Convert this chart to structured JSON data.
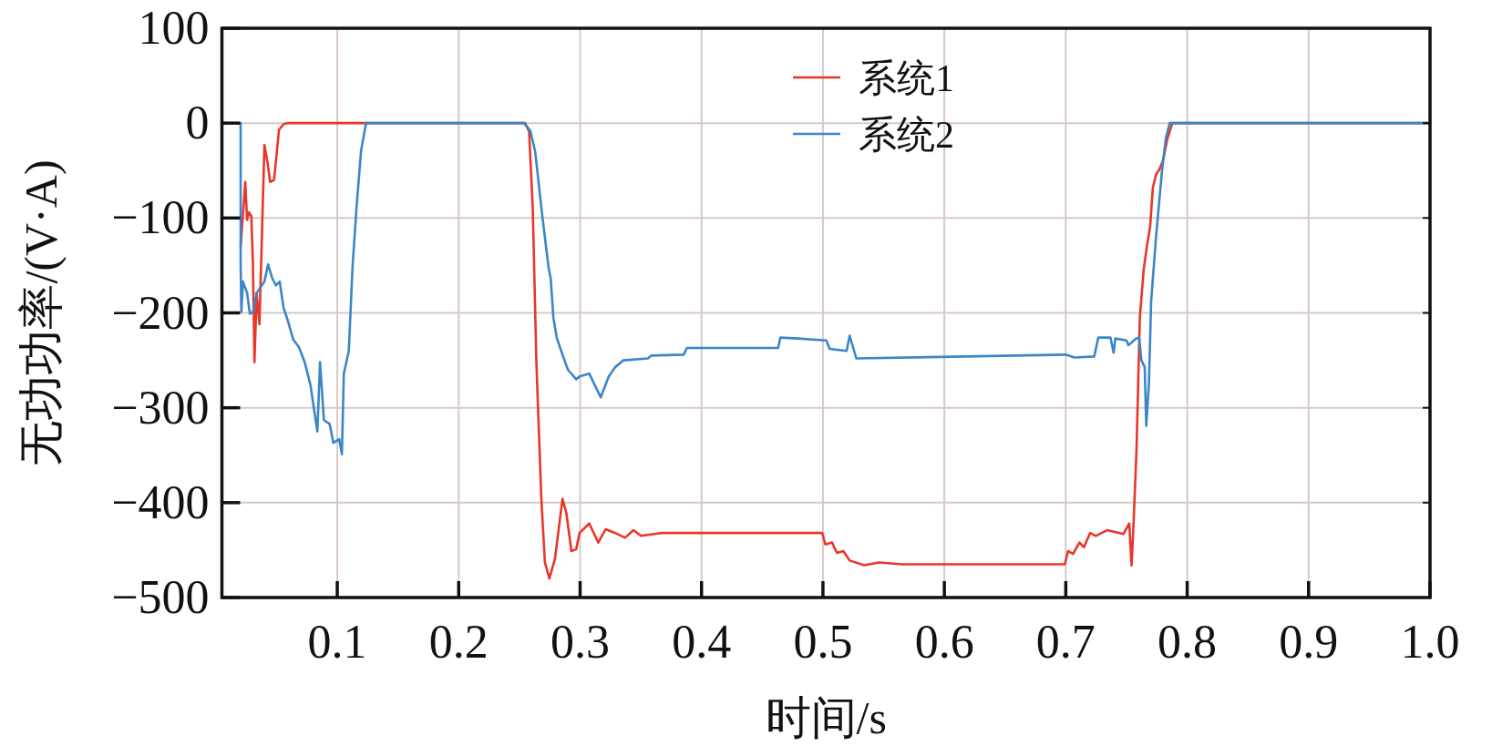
{
  "chart_data": {
    "type": "line",
    "xlabel": "时间/s",
    "ylabel": "无功功率/(V·A)",
    "xlim": [
      0.005,
      1.0
    ],
    "ylim": [
      -500,
      100
    ],
    "xticks": [
      0.1,
      0.2,
      0.3,
      0.4,
      0.5,
      0.6,
      0.7,
      0.8,
      0.9,
      {
        "value": 1.0,
        "label": "1.0"
      }
    ],
    "yticks": [
      -500,
      -400,
      -300,
      -200,
      -100,
      0,
      100
    ],
    "grid": true,
    "legend": "top",
    "marker": "none",
    "line_style": "solid",
    "series": [
      {
        "name": "系统1",
        "color": "#e8362a",
        "x": [
          0.0204,
          0.0242,
          0.0257,
          0.0273,
          0.0292,
          0.0305,
          0.0318,
          0.0336,
          0.0359,
          0.04,
          0.0425,
          0.0447,
          0.0479,
          0.05,
          0.052,
          0.0558,
          0.059,
          0.2548,
          0.258,
          0.261,
          0.264,
          0.268,
          0.271,
          0.2747,
          0.2793,
          0.2855,
          0.2887,
          0.2928,
          0.2968,
          0.2995,
          0.3075,
          0.315,
          0.321,
          0.329,
          0.337,
          0.344,
          0.35,
          0.3665,
          0.404,
          0.4994,
          0.502,
          0.5075,
          0.5115,
          0.5168,
          0.522,
          0.534,
          0.5463,
          0.565,
          0.6992,
          0.7019,
          0.706,
          0.7113,
          0.715,
          0.72,
          0.7247,
          0.734,
          0.7475,
          0.7523,
          0.7542,
          0.7556,
          0.7583,
          0.761,
          0.7642,
          0.7668,
          0.7695,
          0.7717,
          0.7744,
          0.777,
          0.78,
          0.7838,
          0.7878,
          1.0
        ],
        "values": [
          -130,
          -62,
          -102,
          -94,
          -98,
          -147,
          -252,
          -179,
          -212,
          -23,
          -41,
          -62,
          -60,
          -33,
          -7,
          -1,
          0,
          0,
          -9,
          -90,
          -252,
          -394,
          -463,
          -480,
          -459,
          -396,
          -411,
          -451,
          -449,
          -432,
          -422,
          -442,
          -428,
          -432,
          -437,
          -429,
          -435,
          -432,
          -432,
          -432,
          -444,
          -442,
          -453,
          -451,
          -461,
          -466,
          -463,
          -465,
          -465,
          -451,
          -454,
          -442,
          -447,
          -432,
          -435,
          -429,
          -433,
          -422,
          -466,
          -429,
          -343,
          -205,
          -154,
          -130,
          -109,
          -68,
          -54,
          -49,
          -40,
          -16,
          0,
          0
        ]
      },
      {
        "name": "系统2",
        "color": "#3a86c8",
        "x": [
          0.0204,
          0.0204,
          0.021,
          0.0223,
          0.0257,
          0.028,
          0.0305,
          0.0336,
          0.04,
          0.043,
          0.0463,
          0.0494,
          0.0526,
          0.0558,
          0.059,
          0.0637,
          0.0684,
          0.0732,
          0.0779,
          0.0836,
          0.0858,
          0.089,
          0.0937,
          0.0968,
          0.1016,
          0.1038,
          0.1054,
          0.1095,
          0.1126,
          0.1158,
          0.1196,
          0.1237,
          0.2538,
          0.259,
          0.263,
          0.2686,
          0.274,
          0.2758,
          0.278,
          0.2807,
          0.286,
          0.29,
          0.2968,
          0.2995,
          0.3075,
          0.317,
          0.3236,
          0.329,
          0.3357,
          0.3558,
          0.3585,
          0.3853,
          0.388,
          0.4631,
          0.465,
          0.4793,
          0.5028,
          0.5055,
          0.5195,
          0.522,
          0.5275,
          0.7,
          0.7072,
          0.7234,
          0.7268,
          0.7368,
          0.7394,
          0.7408,
          0.75,
          0.7516,
          0.758,
          0.7604,
          0.7623,
          0.765,
          0.7663,
          0.7685,
          0.7703,
          0.7744,
          0.7792,
          0.7824,
          0.7856,
          1.0
        ],
        "values": [
          0,
          -147,
          -199,
          -167,
          -179,
          -201,
          -199,
          -179,
          -167,
          -149,
          -163,
          -171,
          -167,
          -195,
          -207,
          -228,
          -236,
          -252,
          -276,
          -325,
          -252,
          -313,
          -317,
          -337,
          -333,
          -349,
          -264,
          -240,
          -151,
          -90,
          -29,
          0,
          0,
          -8,
          -30,
          -95,
          -152,
          -164,
          -205,
          -226,
          -246,
          -260,
          -270,
          -267,
          -264,
          -289,
          -267,
          -257,
          -250,
          -248,
          -245,
          -244,
          -237,
          -237,
          -226,
          -227,
          -229,
          -238,
          -240,
          -224,
          -248,
          -244,
          -247,
          -246,
          -226,
          -226,
          -242,
          -227,
          -229,
          -234,
          -227,
          -226,
          -250,
          -257,
          -319,
          -274,
          -188,
          -119,
          -51,
          -16,
          0,
          0
        ]
      }
    ]
  }
}
